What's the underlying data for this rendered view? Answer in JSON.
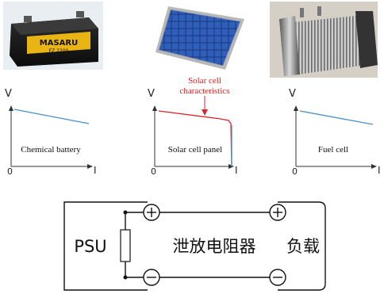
{
  "photos": {
    "battery_brand": "MASARU",
    "battery_model": "FZ 2200"
  },
  "graphs": [
    {
      "id": "chemical",
      "y_label": "V",
      "x_label": "I",
      "origin": "0",
      "caption": "Chemical battery"
    },
    {
      "id": "solar",
      "y_label": "V",
      "x_label": "I",
      "origin": "0",
      "caption": "Solar cell panel",
      "annotation_line1": "Solar cell",
      "annotation_line2": "characteristics"
    },
    {
      "id": "fuel",
      "y_label": "V",
      "x_label": "I",
      "origin": "0",
      "caption": "Fuel cell"
    }
  ],
  "circuit": {
    "source_label": "PSU",
    "resistor_label": "泄放电阻器",
    "load_label": "负载"
  },
  "colors": {
    "curve_blue": "#4a90c8",
    "curve_red": "#d8262a",
    "annotation_red": "#e0201f",
    "axis": "#333333",
    "wire": "#111111"
  }
}
